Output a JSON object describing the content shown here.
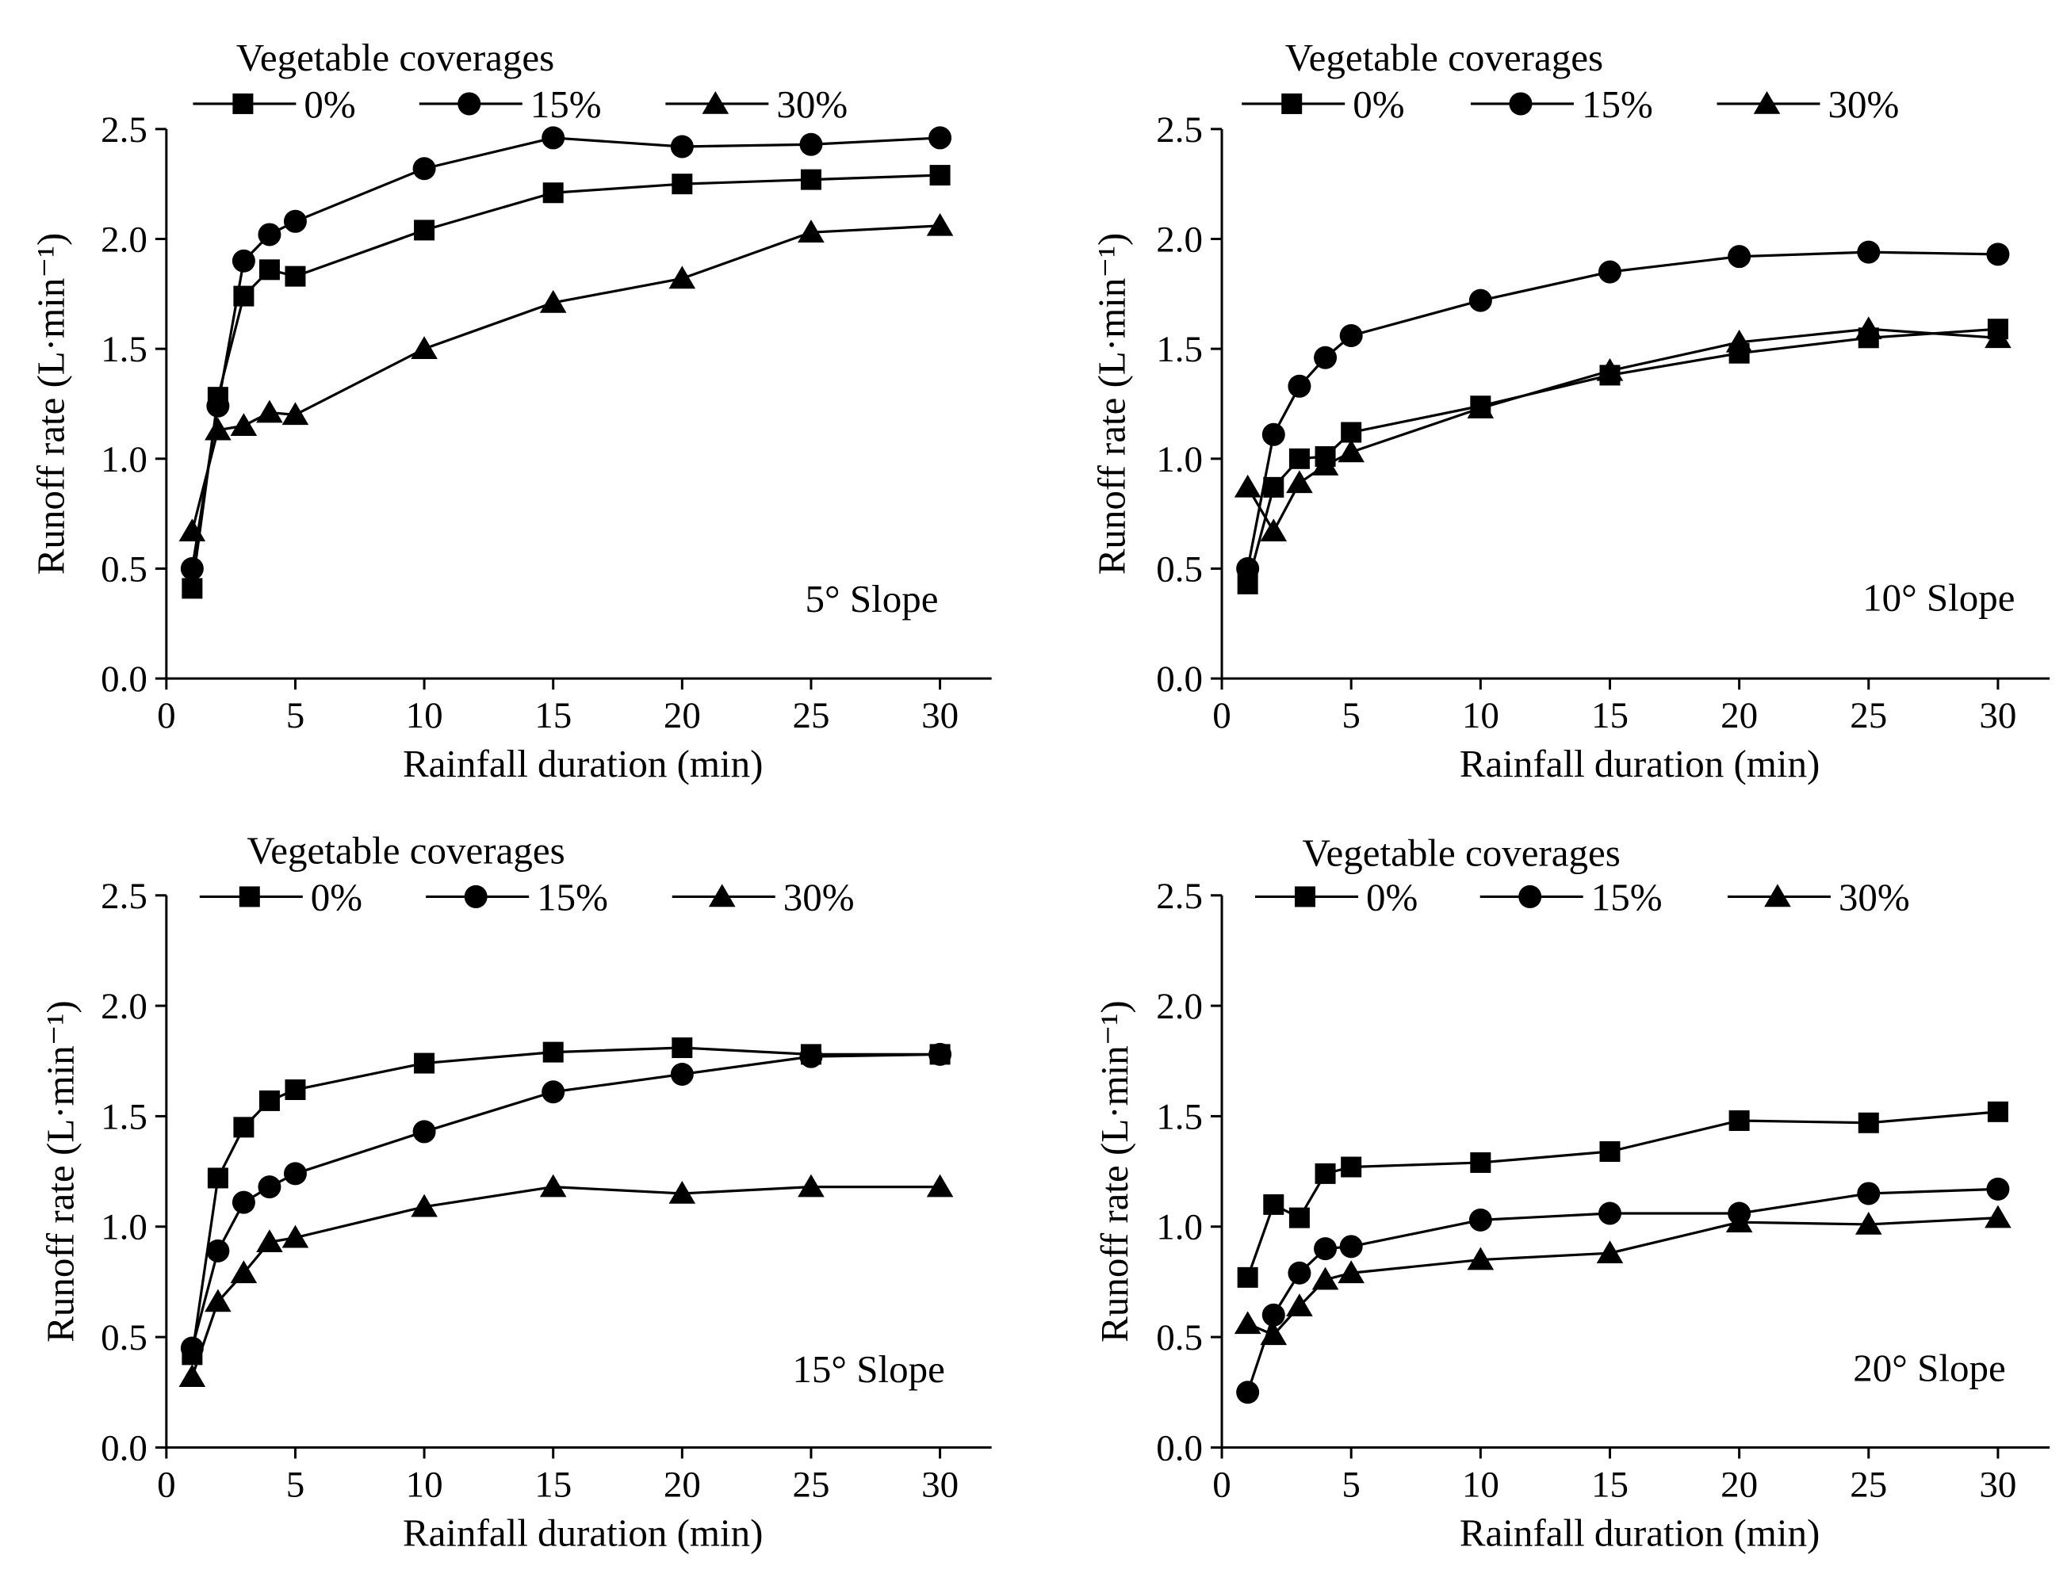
{
  "chart_data": [
    {
      "type": "line",
      "annotation": "5° Slope",
      "legend_title": "Vegetable coverages",
      "xlabel": "Rainfall duration (min)",
      "ylabel": "Runoff rate (L·min⁻¹)",
      "xlim": [
        0,
        32
      ],
      "ylim": [
        0,
        2.5
      ],
      "xticks": [
        0,
        5,
        10,
        15,
        20,
        25,
        30
      ],
      "xtick_labels": [
        "0",
        "5",
        "10",
        "15",
        "20",
        "25",
        "30"
      ],
      "yticks": [
        0,
        0.5,
        1.0,
        1.5,
        2.0,
        2.5
      ],
      "ytick_labels": [
        "0.0",
        "0.5",
        "1.0",
        "1.5",
        "2.0",
        "2.5"
      ],
      "x": [
        1,
        2,
        3,
        4,
        5,
        10,
        15,
        20,
        25,
        30
      ],
      "series": [
        {
          "name": "0%",
          "marker": "square",
          "values": [
            0.41,
            1.28,
            1.74,
            1.86,
            1.83,
            2.04,
            2.21,
            2.25,
            2.27,
            2.29
          ]
        },
        {
          "name": "15%",
          "marker": "circle",
          "values": [
            0.5,
            1.24,
            1.9,
            2.02,
            2.08,
            2.32,
            2.46,
            2.42,
            2.43,
            2.46
          ]
        },
        {
          "name": "30%",
          "marker": "triangle",
          "values": [
            0.67,
            1.13,
            1.15,
            1.21,
            1.2,
            1.5,
            1.71,
            1.82,
            2.03,
            2.06
          ]
        }
      ]
    },
    {
      "type": "line",
      "annotation": "10° Slope",
      "legend_title": "Vegetable coverages",
      "xlabel": "Rainfall duration (min)",
      "ylabel": "Runoff rate (L·min⁻¹)",
      "xlim": [
        0,
        32
      ],
      "ylim": [
        0,
        2.5
      ],
      "xticks": [
        0,
        5,
        10,
        15,
        20,
        25,
        30
      ],
      "xtick_labels": [
        "0",
        "5",
        "10",
        "15",
        "20",
        "25",
        "30"
      ],
      "yticks": [
        0,
        0.5,
        1.0,
        1.5,
        2.0,
        2.5
      ],
      "ytick_labels": [
        "0.0",
        "0.5",
        "1.0",
        "1.5",
        "2.0",
        "2.5"
      ],
      "x": [
        1,
        2,
        3,
        4,
        5,
        10,
        15,
        20,
        25,
        30
      ],
      "series": [
        {
          "name": "0%",
          "marker": "square",
          "values": [
            0.43,
            0.87,
            1.0,
            1.01,
            1.12,
            1.24,
            1.38,
            1.48,
            1.55,
            1.59
          ]
        },
        {
          "name": "15%",
          "marker": "circle",
          "values": [
            0.5,
            1.11,
            1.33,
            1.46,
            1.56,
            1.72,
            1.85,
            1.92,
            1.94,
            1.93
          ]
        },
        {
          "name": "30%",
          "marker": "triangle",
          "values": [
            0.87,
            0.67,
            0.89,
            0.97,
            1.03,
            1.23,
            1.4,
            1.53,
            1.59,
            1.55
          ]
        }
      ]
    },
    {
      "type": "line",
      "annotation": "15° Slope",
      "legend_title": "Vegetable coverages",
      "xlabel": "Rainfall duration (min)",
      "ylabel": "Runoff rate (L·min⁻¹)",
      "xlim": [
        0,
        32
      ],
      "ylim": [
        0,
        2.5
      ],
      "xticks": [
        0,
        5,
        10,
        15,
        20,
        25,
        30
      ],
      "xtick_labels": [
        "0",
        "5",
        "10",
        "15",
        "20",
        "25",
        "30"
      ],
      "yticks": [
        0,
        0.5,
        1.0,
        1.5,
        2.0,
        2.5
      ],
      "ytick_labels": [
        "0.0",
        "0.5",
        "1.0",
        "1.5",
        "2.0",
        "2.5"
      ],
      "x": [
        1,
        2,
        3,
        4,
        5,
        10,
        15,
        20,
        25,
        30
      ],
      "series": [
        {
          "name": "0%",
          "marker": "square",
          "values": [
            0.42,
            1.22,
            1.45,
            1.57,
            1.62,
            1.74,
            1.79,
            1.81,
            1.78,
            1.78
          ]
        },
        {
          "name": "15%",
          "marker": "circle",
          "values": [
            0.45,
            0.89,
            1.11,
            1.18,
            1.24,
            1.43,
            1.61,
            1.69,
            1.77,
            1.78
          ]
        },
        {
          "name": "30%",
          "marker": "triangle",
          "values": [
            0.32,
            0.66,
            0.79,
            0.93,
            0.95,
            1.09,
            1.18,
            1.15,
            1.18,
            1.18
          ]
        }
      ]
    },
    {
      "type": "line",
      "annotation": "20° Slope",
      "legend_title": "Vegetable coverages",
      "xlabel": "Rainfall duration (min)",
      "ylabel": "Runoff rate (L·min⁻¹)",
      "xlim": [
        0,
        32
      ],
      "ylim": [
        0,
        2.5
      ],
      "xticks": [
        0,
        5,
        10,
        15,
        20,
        25,
        30
      ],
      "xtick_labels": [
        "0",
        "5",
        "10",
        "15",
        "20",
        "25",
        "30"
      ],
      "yticks": [
        0,
        0.5,
        1.0,
        1.5,
        2.0,
        2.5
      ],
      "ytick_labels": [
        "0.0",
        "0.5",
        "1.0",
        "1.5",
        "2.0",
        "2.5"
      ],
      "x": [
        1,
        2,
        3,
        4,
        5,
        10,
        15,
        20,
        25,
        30
      ],
      "series": [
        {
          "name": "0%",
          "marker": "square",
          "values": [
            0.77,
            1.1,
            1.04,
            1.24,
            1.27,
            1.29,
            1.34,
            1.48,
            1.47,
            1.52
          ]
        },
        {
          "name": "15%",
          "marker": "circle",
          "values": [
            0.25,
            0.6,
            0.79,
            0.9,
            0.91,
            1.03,
            1.06,
            1.06,
            1.15,
            1.17
          ]
        },
        {
          "name": "30%",
          "marker": "triangle",
          "values": [
            0.56,
            0.51,
            0.64,
            0.76,
            0.79,
            0.85,
            0.88,
            1.02,
            1.01,
            1.04
          ]
        }
      ]
    }
  ]
}
